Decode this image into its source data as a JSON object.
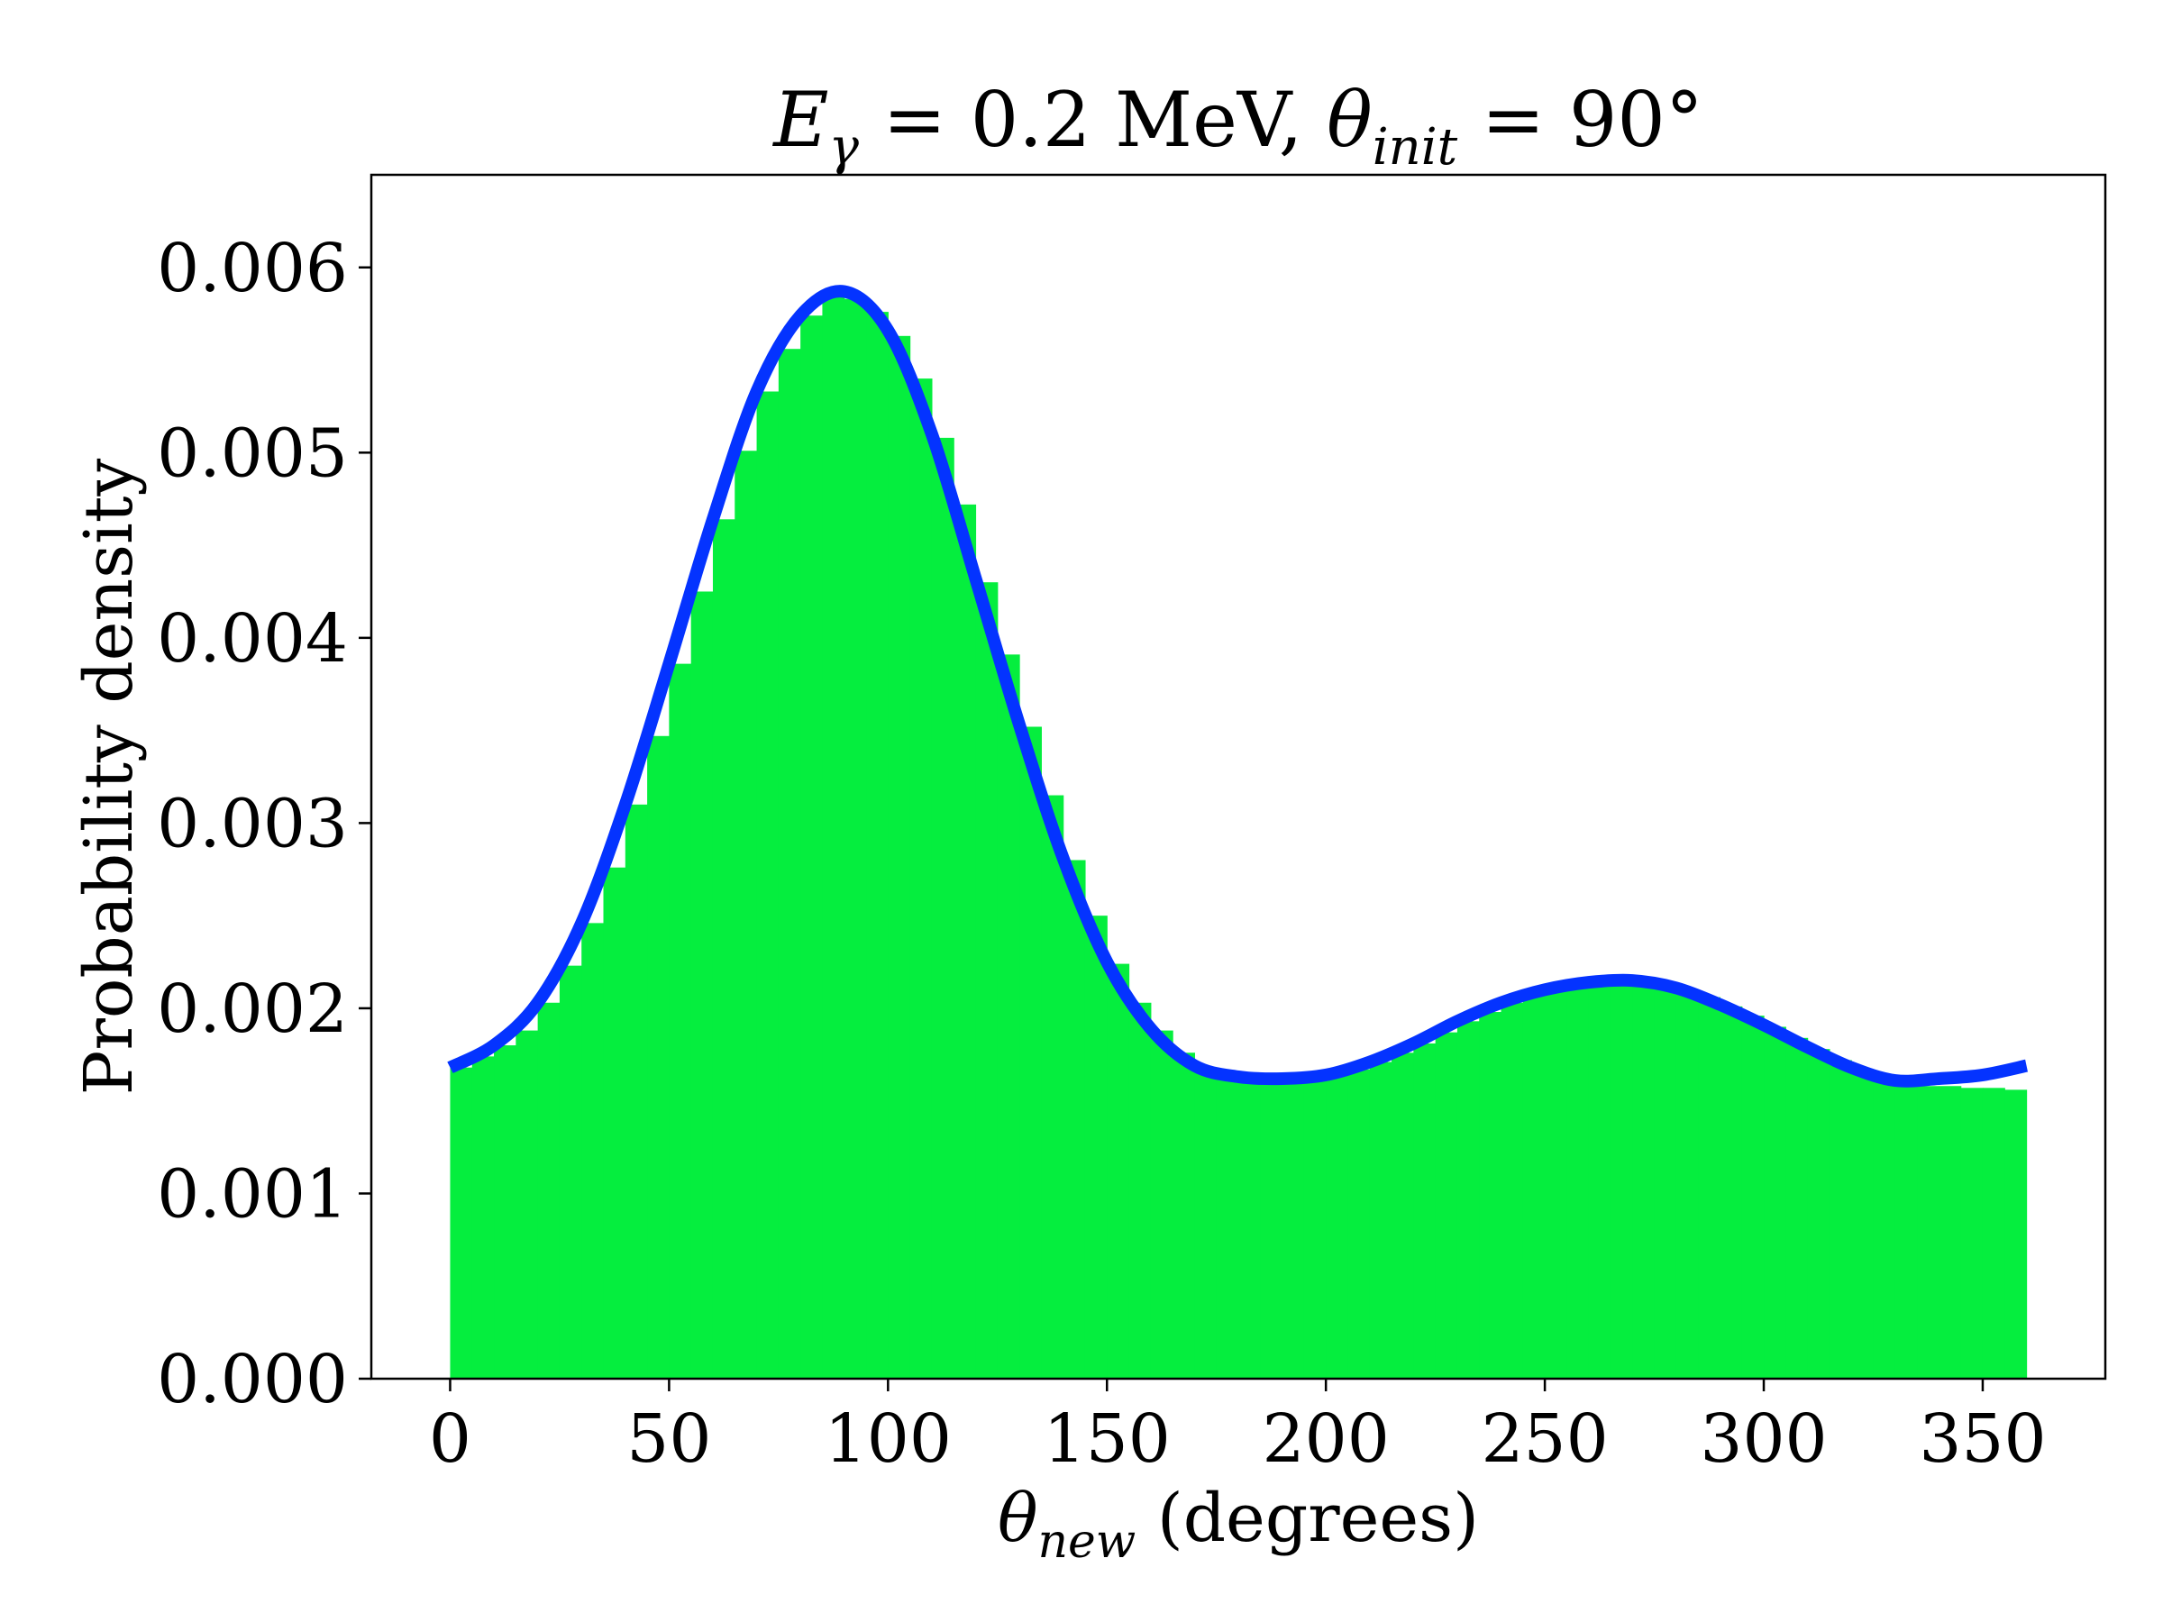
{
  "chart_data": {
    "type": "bar",
    "title": {
      "e_symbol": "E",
      "e_subscript": "γ",
      "eq1": " = 0.2 MeV, ",
      "theta_symbol": "θ",
      "theta_subscript": "init",
      "eq2": " = 90°"
    },
    "xlabel": {
      "symbol": "θ",
      "subscript": "new",
      "text": " (degrees)"
    },
    "ylabel": "Probability density",
    "xlim": [
      -18,
      378
    ],
    "ylim": [
      0,
      0.0065
    ],
    "x_ticks": [
      {
        "value": 0,
        "label": "0"
      },
      {
        "value": 50,
        "label": "50"
      },
      {
        "value": 100,
        "label": "100"
      },
      {
        "value": 150,
        "label": "150"
      },
      {
        "value": 200,
        "label": "200"
      },
      {
        "value": 250,
        "label": "250"
      },
      {
        "value": 300,
        "label": "300"
      },
      {
        "value": 350,
        "label": "350"
      }
    ],
    "y_ticks": [
      {
        "value": 0.0,
        "label": "0.000"
      },
      {
        "value": 0.001,
        "label": "0.001"
      },
      {
        "value": 0.002,
        "label": "0.002"
      },
      {
        "value": 0.003,
        "label": "0.003"
      },
      {
        "value": 0.004,
        "label": "0.004"
      },
      {
        "value": 0.005,
        "label": "0.005"
      },
      {
        "value": 0.006,
        "label": "0.006"
      }
    ],
    "grid": false,
    "legend": "none",
    "series": [
      {
        "kind": "histogram",
        "color": "#05ee3e",
        "bin_width": 5,
        "bins": [
          {
            "x": 0,
            "y": 0.00168
          },
          {
            "x": 5,
            "y": 0.00174
          },
          {
            "x": 10,
            "y": 0.0018
          },
          {
            "x": 15,
            "y": 0.00188
          },
          {
            "x": 20,
            "y": 0.00203
          },
          {
            "x": 25,
            "y": 0.00223
          },
          {
            "x": 30,
            "y": 0.00246
          },
          {
            "x": 35,
            "y": 0.00276
          },
          {
            "x": 40,
            "y": 0.0031
          },
          {
            "x": 45,
            "y": 0.00347
          },
          {
            "x": 50,
            "y": 0.00386
          },
          {
            "x": 55,
            "y": 0.00425
          },
          {
            "x": 60,
            "y": 0.00464
          },
          {
            "x": 65,
            "y": 0.00501
          },
          {
            "x": 70,
            "y": 0.00533
          },
          {
            "x": 75,
            "y": 0.00556
          },
          {
            "x": 80,
            "y": 0.00574
          },
          {
            "x": 85,
            "y": 0.00584
          },
          {
            "x": 90,
            "y": 0.00583
          },
          {
            "x": 95,
            "y": 0.00576
          },
          {
            "x": 100,
            "y": 0.00563
          },
          {
            "x": 105,
            "y": 0.0054
          },
          {
            "x": 110,
            "y": 0.00508
          },
          {
            "x": 115,
            "y": 0.00472
          },
          {
            "x": 120,
            "y": 0.0043
          },
          {
            "x": 125,
            "y": 0.00391
          },
          {
            "x": 130,
            "y": 0.00352
          },
          {
            "x": 135,
            "y": 0.00315
          },
          {
            "x": 140,
            "y": 0.0028
          },
          {
            "x": 145,
            "y": 0.0025
          },
          {
            "x": 150,
            "y": 0.00224
          },
          {
            "x": 155,
            "y": 0.00203
          },
          {
            "x": 160,
            "y": 0.00188
          },
          {
            "x": 165,
            "y": 0.00176
          },
          {
            "x": 170,
            "y": 0.00168
          },
          {
            "x": 175,
            "y": 0.00164
          },
          {
            "x": 180,
            "y": 0.00162
          },
          {
            "x": 185,
            "y": 0.00161
          },
          {
            "x": 190,
            "y": 0.00161
          },
          {
            "x": 195,
            "y": 0.00162
          },
          {
            "x": 200,
            "y": 0.00164
          },
          {
            "x": 205,
            "y": 0.00167
          },
          {
            "x": 210,
            "y": 0.00171
          },
          {
            "x": 215,
            "y": 0.00176
          },
          {
            "x": 220,
            "y": 0.00181
          },
          {
            "x": 225,
            "y": 0.00187
          },
          {
            "x": 230,
            "y": 0.00193
          },
          {
            "x": 235,
            "y": 0.00198
          },
          {
            "x": 240,
            "y": 0.00203
          },
          {
            "x": 245,
            "y": 0.00207
          },
          {
            "x": 250,
            "y": 0.0021
          },
          {
            "x": 255,
            "y": 0.00212
          },
          {
            "x": 260,
            "y": 0.00214
          },
          {
            "x": 265,
            "y": 0.00214
          },
          {
            "x": 270,
            "y": 0.00214
          },
          {
            "x": 275,
            "y": 0.00213
          },
          {
            "x": 280,
            "y": 0.0021
          },
          {
            "x": 285,
            "y": 0.00206
          },
          {
            "x": 290,
            "y": 0.00201
          },
          {
            "x": 295,
            "y": 0.00196
          },
          {
            "x": 300,
            "y": 0.0019
          },
          {
            "x": 305,
            "y": 0.00184
          },
          {
            "x": 310,
            "y": 0.00178
          },
          {
            "x": 315,
            "y": 0.00172
          },
          {
            "x": 320,
            "y": 0.00167
          },
          {
            "x": 325,
            "y": 0.00163
          },
          {
            "x": 330,
            "y": 0.0016
          },
          {
            "x": 335,
            "y": 0.00158
          },
          {
            "x": 340,
            "y": 0.00158
          },
          {
            "x": 345,
            "y": 0.00157
          },
          {
            "x": 350,
            "y": 0.00157
          },
          {
            "x": 355,
            "y": 0.00156
          }
        ]
      },
      {
        "kind": "line",
        "color": "#0433ff",
        "x": [
          0,
          10,
          20,
          30,
          40,
          50,
          60,
          70,
          80,
          90,
          100,
          110,
          120,
          130,
          140,
          150,
          160,
          170,
          180,
          190,
          200,
          210,
          220,
          230,
          240,
          250,
          260,
          270,
          280,
          290,
          300,
          310,
          320,
          330,
          340,
          350,
          360
        ],
        "y": [
          0.00168,
          0.0018,
          0.00203,
          0.00246,
          0.0031,
          0.00386,
          0.00464,
          0.00533,
          0.00574,
          0.00587,
          0.00566,
          0.0051,
          0.00432,
          0.00353,
          0.00281,
          0.00225,
          0.00189,
          0.00169,
          0.00163,
          0.00162,
          0.00164,
          0.00171,
          0.00181,
          0.00193,
          0.00203,
          0.0021,
          0.00214,
          0.00215,
          0.00211,
          0.00202,
          0.00191,
          0.00179,
          0.00168,
          0.00161,
          0.00162,
          0.00164,
          0.00169
        ]
      }
    ]
  }
}
